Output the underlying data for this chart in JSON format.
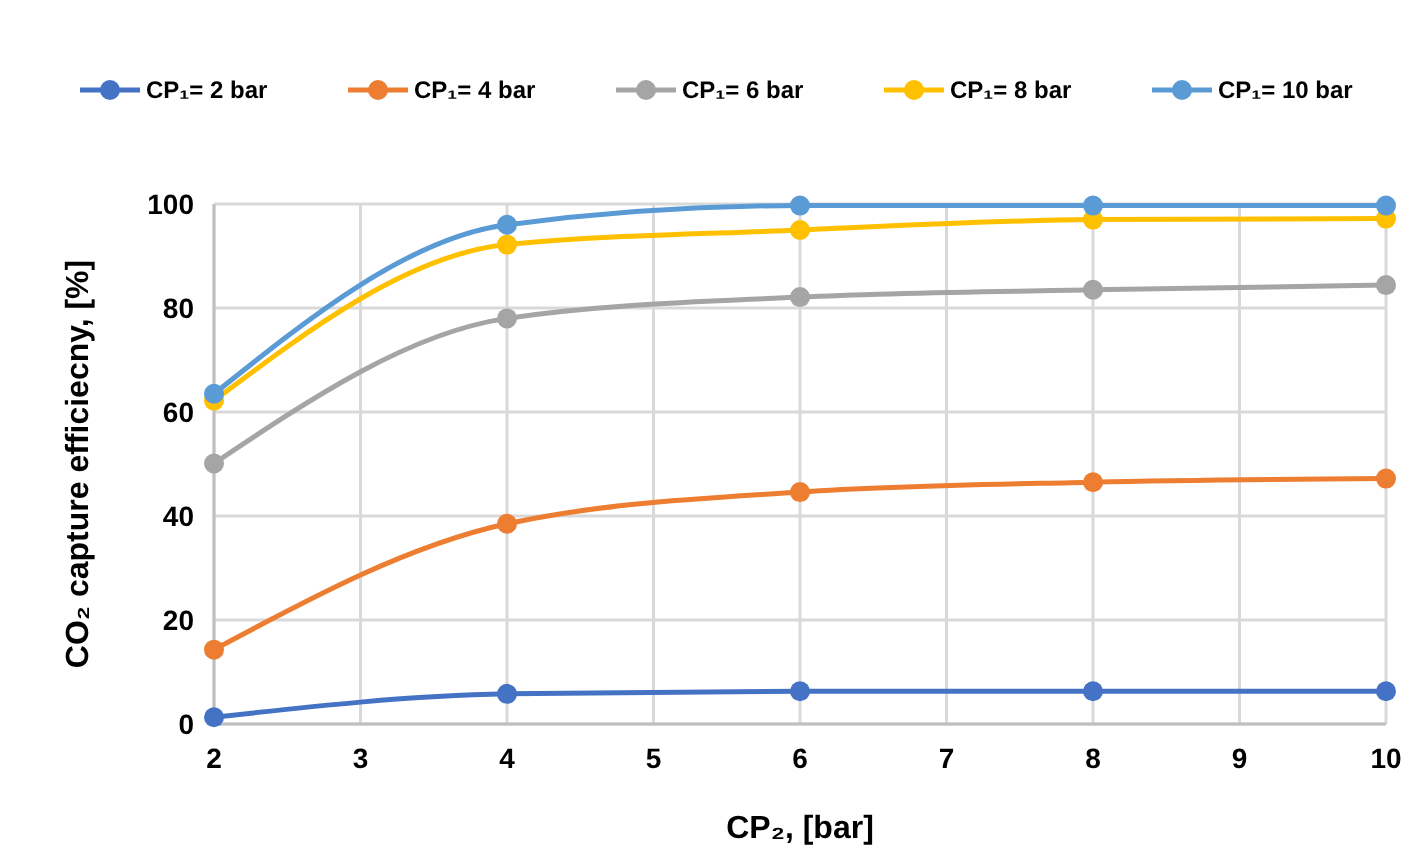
{
  "chart_data": {
    "type": "line",
    "xlabel": "CP₂, [bar]",
    "ylabel": "CO₂ capture efficiecny, [%]",
    "x": [
      2,
      4,
      6,
      8,
      10
    ],
    "series": [
      {
        "name": "CP₁= 2 bar",
        "color": "#4472c4",
        "values": [
          1.3,
          5.8,
          6.3,
          6.3,
          6.3
        ]
      },
      {
        "name": "CP₁= 4 bar",
        "color": "#ed7d31",
        "values": [
          14.3,
          38.5,
          44.6,
          46.5,
          47.2
        ]
      },
      {
        "name": "CP₁= 6 bar",
        "color": "#a5a5a5",
        "values": [
          50.1,
          78,
          82.1,
          83.5,
          84.4
        ]
      },
      {
        "name": "CP₁= 8 bar",
        "color": "#ffc000",
        "values": [
          62.2,
          92.2,
          95,
          97,
          97.2
        ]
      },
      {
        "name": "CP₁= 10 bar",
        "color": "#5b9bd5",
        "values": [
          63.5,
          96,
          99.7,
          99.7,
          99.7
        ]
      }
    ],
    "xlim": [
      2,
      10
    ],
    "xticks": [
      2,
      3,
      4,
      5,
      6,
      7,
      8,
      9,
      10
    ],
    "ylim": [
      0,
      100
    ],
    "yticks": [
      0,
      20,
      40,
      60,
      80,
      100
    ],
    "grid": true,
    "legend": "top",
    "marker": "circle",
    "line_style": "solid"
  }
}
